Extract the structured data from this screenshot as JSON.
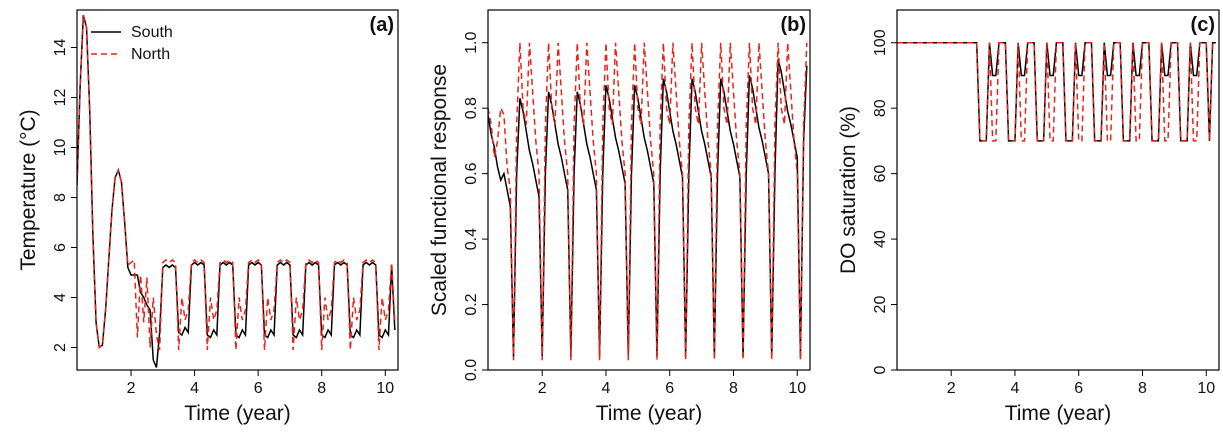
{
  "chart_data": [
    {
      "type": "line",
      "panel_label": "(a)",
      "xlabel": "Time (year)",
      "ylabel": "Temperature (°C)",
      "xlim": [
        0.3,
        10.4
      ],
      "ylim": [
        1.1,
        15.5
      ],
      "xticks": [
        2,
        4,
        6,
        8,
        10
      ],
      "yticks": [
        2,
        4,
        6,
        8,
        10,
        12,
        14
      ],
      "legend": "top-left",
      "x": [
        0.3,
        0.4,
        0.5,
        0.6,
        0.7,
        0.8,
        0.9,
        1.0,
        1.1,
        1.2,
        1.3,
        1.4,
        1.5,
        1.6,
        1.7,
        1.8,
        1.9,
        2.0,
        2.1,
        2.2,
        2.3,
        2.4,
        2.5,
        2.6,
        2.7,
        2.8,
        2.9,
        3.0,
        3.1,
        3.2,
        3.3,
        3.4,
        3.5,
        3.6,
        3.7,
        3.8,
        3.9,
        4.0,
        4.1,
        4.2,
        4.3,
        4.4,
        4.5,
        4.6,
        4.7,
        4.8,
        4.9,
        5.0,
        5.1,
        5.2,
        5.3,
        5.4,
        5.5,
        5.6,
        5.7,
        5.8,
        5.9,
        6.0,
        6.1,
        6.2,
        6.3,
        6.4,
        6.5,
        6.6,
        6.7,
        6.8,
        6.9,
        7.0,
        7.1,
        7.2,
        7.3,
        7.4,
        7.5,
        7.6,
        7.7,
        7.8,
        7.9,
        8.0,
        8.1,
        8.2,
        8.3,
        8.4,
        8.5,
        8.6,
        8.7,
        8.8,
        8.9,
        9.0,
        9.1,
        9.2,
        9.3,
        9.4,
        9.5,
        9.6,
        9.7,
        9.8,
        9.9,
        10.0,
        10.1,
        10.2,
        10.3
      ],
      "series": [
        {
          "name": "South",
          "color": "#000000",
          "dash": "solid",
          "values": [
            8.5,
            12.5,
            15.3,
            14.8,
            11.5,
            6.5,
            3,
            2,
            2.1,
            3.5,
            5.5,
            7.5,
            8.8,
            9.1,
            8.6,
            7,
            5.2,
            4.9,
            4.9,
            4.9,
            4.2,
            4,
            3.7,
            3.5,
            1.5,
            1.2,
            2.6,
            5.2,
            5.3,
            5.2,
            5.3,
            5.2,
            2.6,
            2.5,
            2.8,
            2.6,
            5.3,
            5.4,
            5.3,
            5.4,
            5.3,
            2.5,
            2.4,
            2.7,
            2.5,
            5.3,
            5.4,
            5.3,
            5.4,
            5.3,
            2.5,
            2.4,
            2.7,
            2.5,
            5.3,
            5.4,
            5.3,
            5.4,
            5.3,
            2.5,
            2.4,
            2.7,
            2.5,
            5.3,
            5.4,
            5.3,
            5.4,
            5.3,
            2.5,
            2.4,
            2.7,
            2.5,
            5.3,
            5.4,
            5.3,
            5.4,
            5.3,
            2.5,
            2.4,
            2.7,
            2.5,
            5.3,
            5.4,
            5.3,
            5.4,
            5.3,
            2.5,
            2.4,
            2.7,
            2.5,
            5.3,
            5.4,
            5.3,
            5.4,
            5.3,
            2.5,
            2.4,
            2.7,
            2.5,
            5.3,
            2.7
          ]
        },
        {
          "name": "North",
          "color": "#e8231c",
          "dash": "dashed",
          "values": [
            8.5,
            12.5,
            15.3,
            14.8,
            11.5,
            6.5,
            3,
            2,
            2.1,
            3.5,
            5.5,
            7.5,
            8.8,
            9.1,
            8.6,
            7,
            5.3,
            5.4,
            5.5,
            2.4,
            4.9,
            3.0,
            4.8,
            2.0,
            4.0,
            2.5,
            1.9,
            5.4,
            5.5,
            5.4,
            5.5,
            5.4,
            1.9,
            4.0,
            3.1,
            3.5,
            5.4,
            5.5,
            5.4,
            5.5,
            5.4,
            1.9,
            4.0,
            3.1,
            3.5,
            5.4,
            5.5,
            5.4,
            5.5,
            5.4,
            1.9,
            4.0,
            3.1,
            3.5,
            5.4,
            5.5,
            5.4,
            5.5,
            5.4,
            1.9,
            4.0,
            3.1,
            3.5,
            5.4,
            5.5,
            5.4,
            5.5,
            5.4,
            1.9,
            4.0,
            3.1,
            3.5,
            5.4,
            5.5,
            5.4,
            5.5,
            5.4,
            1.9,
            4.0,
            3.1,
            3.5,
            5.4,
            5.5,
            5.4,
            5.5,
            5.4,
            1.9,
            4.0,
            3.1,
            3.5,
            5.4,
            5.5,
            5.4,
            5.5,
            5.4,
            1.9,
            4.0,
            3.1,
            3.5,
            5.4,
            3.0
          ]
        }
      ]
    },
    {
      "type": "line",
      "panel_label": "(b)",
      "xlabel": "Time (year)",
      "ylabel": "Scaled functional response",
      "xlim": [
        0.3,
        10.4
      ],
      "ylim": [
        0,
        1.1
      ],
      "xticks": [
        2,
        4,
        6,
        8,
        10
      ],
      "yticks": [
        {
          "value": 0,
          "label": "0.0"
        },
        0.2,
        0.4,
        0.6,
        0.8,
        {
          "value": 1,
          "label": "1.0"
        }
      ],
      "x": [
        0.3,
        0.4,
        0.5,
        0.6,
        0.7,
        0.8,
        0.9,
        1.0,
        1.1,
        1.2,
        1.3,
        1.4,
        1.5,
        1.6,
        1.7,
        1.8,
        1.9,
        2.0,
        2.1,
        2.2,
        2.3,
        2.4,
        2.5,
        2.6,
        2.7,
        2.8,
        2.9,
        3.0,
        3.1,
        3.2,
        3.3,
        3.4,
        3.5,
        3.6,
        3.7,
        3.8,
        3.9,
        4.0,
        4.1,
        4.2,
        4.3,
        4.4,
        4.5,
        4.6,
        4.7,
        4.8,
        4.9,
        5.0,
        5.1,
        5.2,
        5.3,
        5.4,
        5.5,
        5.6,
        5.7,
        5.8,
        5.9,
        6.0,
        6.1,
        6.2,
        6.3,
        6.4,
        6.5,
        6.6,
        6.7,
        6.8,
        6.9,
        7.0,
        7.1,
        7.2,
        7.3,
        7.4,
        7.5,
        7.6,
        7.7,
        7.8,
        7.9,
        8.0,
        8.1,
        8.2,
        8.3,
        8.4,
        8.5,
        8.6,
        8.7,
        8.8,
        8.9,
        9.0,
        9.1,
        9.2,
        9.3,
        9.4,
        9.5,
        9.6,
        9.7,
        9.8,
        9.9,
        10.0,
        10.1,
        10.2,
        10.3
      ],
      "series": [
        {
          "color": "#000000",
          "dash": "solid",
          "values": [
            0.78,
            0.72,
            0.68,
            0.62,
            0.58,
            0.6,
            0.55,
            0.5,
            0.04,
            0.6,
            0.83,
            0.79,
            0.73,
            0.67,
            0.63,
            0.58,
            0.53,
            0.04,
            0.6,
            0.85,
            0.81,
            0.75,
            0.69,
            0.65,
            0.6,
            0.55,
            0.04,
            0.6,
            0.85,
            0.81,
            0.75,
            0.69,
            0.65,
            0.6,
            0.55,
            0.04,
            0.6,
            0.87,
            0.83,
            0.77,
            0.71,
            0.67,
            0.62,
            0.57,
            0.04,
            0.6,
            0.87,
            0.83,
            0.77,
            0.71,
            0.67,
            0.62,
            0.57,
            0.04,
            0.6,
            0.89,
            0.85,
            0.79,
            0.73,
            0.69,
            0.64,
            0.59,
            0.04,
            0.6,
            0.89,
            0.85,
            0.79,
            0.73,
            0.69,
            0.64,
            0.59,
            0.04,
            0.6,
            0.89,
            0.85,
            0.79,
            0.73,
            0.69,
            0.64,
            0.59,
            0.04,
            0.6,
            0.9,
            0.86,
            0.8,
            0.74,
            0.7,
            0.65,
            0.6,
            0.04,
            0.6,
            0.95,
            0.91,
            0.85,
            0.79,
            0.75,
            0.7,
            0.65,
            0.04,
            0.7,
            0.93
          ]
        },
        {
          "color": "#e8231c",
          "dash": "dashed",
          "values": [
            0.8,
            0.75,
            0.65,
            0.7,
            0.8,
            0.78,
            0.62,
            0.55,
            0.03,
            0.75,
            1.0,
            0.8,
            0.75,
            1.0,
            0.85,
            0.7,
            0.6,
            0.03,
            0.75,
            1.0,
            0.8,
            0.75,
            1.0,
            0.85,
            0.7,
            0.6,
            0.03,
            0.75,
            1.0,
            0.8,
            0.75,
            1.0,
            0.85,
            0.7,
            0.6,
            0.03,
            0.75,
            1.0,
            0.8,
            0.75,
            1.0,
            0.85,
            0.7,
            0.6,
            0.03,
            0.75,
            1.0,
            0.8,
            0.75,
            1.0,
            0.85,
            0.7,
            0.6,
            0.03,
            0.75,
            1.0,
            0.8,
            0.75,
            1.0,
            0.85,
            0.7,
            0.6,
            0.03,
            0.75,
            1.0,
            0.8,
            0.75,
            1.0,
            0.85,
            0.7,
            0.6,
            0.03,
            0.75,
            1.0,
            0.8,
            0.75,
            1.0,
            0.85,
            0.7,
            0.6,
            0.03,
            0.75,
            1.0,
            0.8,
            0.75,
            1.0,
            0.85,
            0.7,
            0.6,
            0.03,
            0.75,
            1.0,
            0.8,
            0.75,
            1.0,
            0.85,
            0.7,
            0.6,
            0.03,
            0.75,
            1.0
          ]
        }
      ]
    },
    {
      "type": "line",
      "panel_label": "(c)",
      "xlabel": "Time (year)",
      "ylabel": "DO saturation (%)",
      "xlim": [
        0.3,
        10.4
      ],
      "ylim": [
        0,
        110
      ],
      "xticks": [
        2,
        4,
        6,
        8,
        10
      ],
      "yticks": [
        0,
        20,
        40,
        60,
        80,
        100
      ],
      "x": [
        0.3,
        0.4,
        0.5,
        0.6,
        0.7,
        0.8,
        0.9,
        1.0,
        1.1,
        1.2,
        1.3,
        1.4,
        1.5,
        1.6,
        1.7,
        1.8,
        1.9,
        2.0,
        2.1,
        2.2,
        2.3,
        2.4,
        2.5,
        2.6,
        2.7,
        2.8,
        2.9,
        3.0,
        3.1,
        3.2,
        3.3,
        3.4,
        3.5,
        3.6,
        3.7,
        3.8,
        3.9,
        4.0,
        4.1,
        4.2,
        4.3,
        4.4,
        4.5,
        4.6,
        4.7,
        4.8,
        4.9,
        5.0,
        5.1,
        5.2,
        5.3,
        5.4,
        5.5,
        5.6,
        5.7,
        5.8,
        5.9,
        6.0,
        6.1,
        6.2,
        6.3,
        6.4,
        6.5,
        6.6,
        6.7,
        6.8,
        6.9,
        7.0,
        7.1,
        7.2,
        7.3,
        7.4,
        7.5,
        7.6,
        7.7,
        7.8,
        7.9,
        8.0,
        8.1,
        8.2,
        8.3,
        8.4,
        8.5,
        8.6,
        8.7,
        8.8,
        8.9,
        9.0,
        9.1,
        9.2,
        9.3,
        9.4,
        9.5,
        9.6,
        9.7,
        9.8,
        9.9,
        10.0,
        10.1,
        10.2,
        10.3
      ],
      "series": [
        {
          "color": "#000000",
          "dash": "solid",
          "values": [
            100,
            100,
            100,
            100,
            100,
            100,
            100,
            100,
            100,
            100,
            100,
            100,
            100,
            100,
            100,
            100,
            100,
            100,
            100,
            100,
            100,
            100,
            100,
            100,
            100,
            100,
            70,
            70,
            70,
            100,
            90,
            90,
            100,
            100,
            100,
            70,
            70,
            70,
            100,
            90,
            90,
            100,
            100,
            100,
            70,
            70,
            70,
            100,
            90,
            90,
            100,
            100,
            100,
            70,
            70,
            70,
            100,
            90,
            90,
            100,
            100,
            100,
            70,
            70,
            70,
            100,
            90,
            90,
            100,
            100,
            100,
            70,
            70,
            70,
            100,
            90,
            90,
            100,
            100,
            100,
            70,
            70,
            70,
            100,
            90,
            90,
            100,
            100,
            100,
            70,
            70,
            70,
            100,
            90,
            90,
            100,
            100,
            100,
            70,
            100,
            100
          ]
        },
        {
          "color": "#e8231c",
          "dash": "dashed",
          "values": [
            100,
            100,
            100,
            100,
            100,
            100,
            100,
            100,
            100,
            100,
            100,
            100,
            100,
            100,
            100,
            100,
            100,
            100,
            100,
            100,
            100,
            100,
            100,
            100,
            100,
            100,
            70,
            70,
            70,
            100,
            70,
            70,
            100,
            100,
            100,
            70,
            70,
            70,
            100,
            70,
            70,
            100,
            100,
            100,
            70,
            70,
            70,
            100,
            70,
            70,
            100,
            100,
            100,
            70,
            70,
            70,
            100,
            70,
            70,
            100,
            100,
            100,
            70,
            70,
            70,
            100,
            70,
            70,
            100,
            100,
            100,
            70,
            70,
            70,
            100,
            70,
            70,
            100,
            100,
            100,
            70,
            70,
            70,
            100,
            70,
            70,
            100,
            100,
            100,
            70,
            70,
            70,
            100,
            70,
            70,
            100,
            100,
            100,
            70,
            100,
            100
          ]
        }
      ]
    }
  ]
}
